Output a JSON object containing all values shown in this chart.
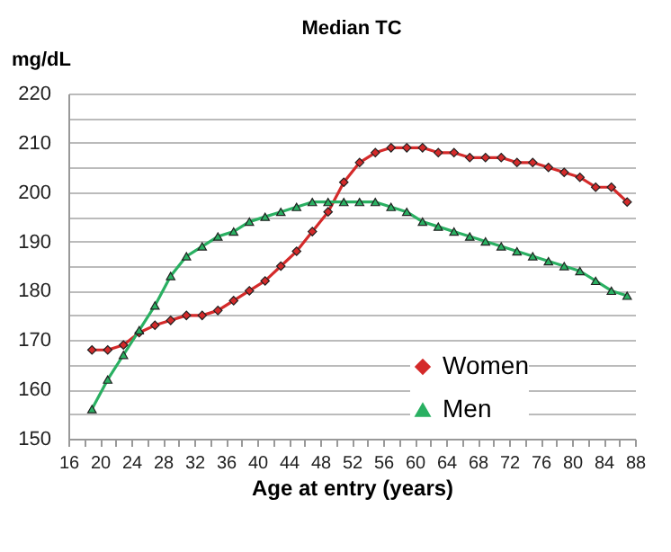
{
  "chart_data": {
    "type": "line",
    "title": "Median TC",
    "xlabel": "Age at entry (years)",
    "ylabel": "mg/dL",
    "x": [
      19,
      21,
      23,
      25,
      27,
      29,
      31,
      33,
      35,
      37,
      39,
      41,
      43,
      45,
      47,
      49,
      51,
      53,
      55,
      57,
      59,
      61,
      63,
      65,
      67,
      69,
      71,
      73,
      75,
      77,
      79,
      81,
      83,
      85,
      87
    ],
    "series": [
      {
        "name": "Women",
        "color": "#d42a2a",
        "marker": "diamond",
        "values": [
          168,
          168,
          169,
          171.5,
          173,
          174,
          175,
          175,
          176,
          178,
          180,
          182,
          185,
          188,
          192,
          196,
          202,
          206,
          208,
          209,
          209,
          209,
          208,
          208,
          207,
          207,
          207,
          206,
          206,
          205,
          204,
          203,
          201,
          201,
          198
        ]
      },
      {
        "name": "Men",
        "color": "#2ab062",
        "marker": "triangle",
        "values": [
          156,
          162,
          167,
          172,
          177,
          183,
          187,
          189,
          191,
          192,
          194,
          195,
          196,
          197,
          198,
          198,
          198,
          198,
          198,
          197,
          196,
          194,
          193,
          192,
          191,
          190,
          189,
          188,
          187,
          186,
          185,
          184,
          182,
          180,
          179
        ]
      }
    ],
    "xlim": [
      16,
      88
    ],
    "xticks": [
      16,
      {
        "value": 18,
        "label": null
      },
      20,
      {
        "value": 22,
        "label": null
      },
      24,
      {
        "value": 26,
        "label": null
      },
      28,
      {
        "value": 30,
        "label": null
      },
      32,
      {
        "value": 34,
        "label": null
      },
      36,
      {
        "value": 38,
        "label": null
      },
      40,
      {
        "value": 42,
        "label": null
      },
      44,
      {
        "value": 46,
        "label": null
      },
      48,
      {
        "value": 50,
        "label": null
      },
      52,
      {
        "value": 54,
        "label": null
      },
      56,
      {
        "value": 58,
        "label": null
      },
      60,
      {
        "value": 62,
        "label": null
      },
      64,
      {
        "value": 66,
        "label": null
      },
      68,
      {
        "value": 70,
        "label": null
      },
      72,
      {
        "value": 74,
        "label": null
      },
      76,
      {
        "value": 78,
        "label": null
      },
      80,
      {
        "value": 82,
        "label": null
      },
      84,
      {
        "value": 86,
        "label": null
      },
      88
    ],
    "ylim": [
      150,
      220
    ],
    "yticks": [
      150,
      {
        "value": 155,
        "label": null
      },
      160,
      {
        "value": 165,
        "label": null
      },
      170,
      {
        "value": 175,
        "label": null
      },
      180,
      {
        "value": 185,
        "label": null
      },
      190,
      {
        "value": 195,
        "label": null
      },
      200,
      {
        "value": 205,
        "label": null
      },
      210,
      {
        "value": 215,
        "label": null
      },
      220
    ],
    "grid": "y",
    "legend": "right",
    "line_style": "solid"
  }
}
